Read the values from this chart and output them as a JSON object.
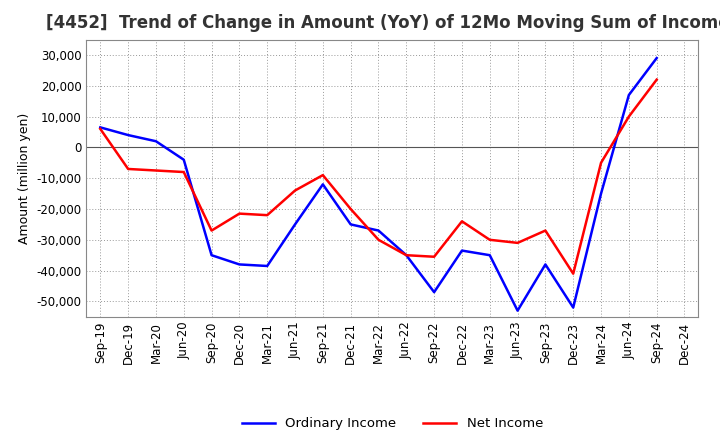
{
  "title": "[4452]  Trend of Change in Amount (YoY) of 12Mo Moving Sum of Incomes",
  "ylabel": "Amount (million yen)",
  "labels": [
    "Sep-19",
    "Dec-19",
    "Mar-20",
    "Jun-20",
    "Sep-20",
    "Dec-20",
    "Mar-21",
    "Jun-21",
    "Sep-21",
    "Dec-21",
    "Mar-22",
    "Jun-22",
    "Sep-22",
    "Dec-22",
    "Mar-23",
    "Jun-23",
    "Sep-23",
    "Dec-23",
    "Mar-24",
    "Jun-24",
    "Sep-24",
    "Dec-24"
  ],
  "ordinary_income": [
    6500,
    4000,
    2000,
    -4000,
    -35000,
    -38000,
    -38500,
    -25000,
    -12000,
    -25000,
    -27000,
    -35000,
    -47000,
    -33500,
    -35000,
    -53000,
    -38000,
    -52000,
    -15000,
    17000,
    29000,
    null
  ],
  "net_income": [
    6000,
    -7000,
    -7500,
    -8000,
    -27000,
    -21500,
    -22000,
    -14000,
    -9000,
    -20000,
    -30000,
    -35000,
    -35500,
    -24000,
    -30000,
    -31000,
    -27000,
    -41000,
    -5000,
    10000,
    22000,
    null
  ],
  "ordinary_income_color": "#0000ff",
  "net_income_color": "#ff0000",
  "ylim": [
    -55000,
    35000
  ],
  "yticks": [
    -50000,
    -40000,
    -30000,
    -20000,
    -10000,
    0,
    10000,
    20000,
    30000
  ],
  "background_color": "#ffffff",
  "grid_color": "#999999",
  "title_fontsize": 12,
  "axis_fontsize": 8.5,
  "ylabel_fontsize": 9,
  "legend_fontsize": 9.5,
  "line_width": 1.8
}
